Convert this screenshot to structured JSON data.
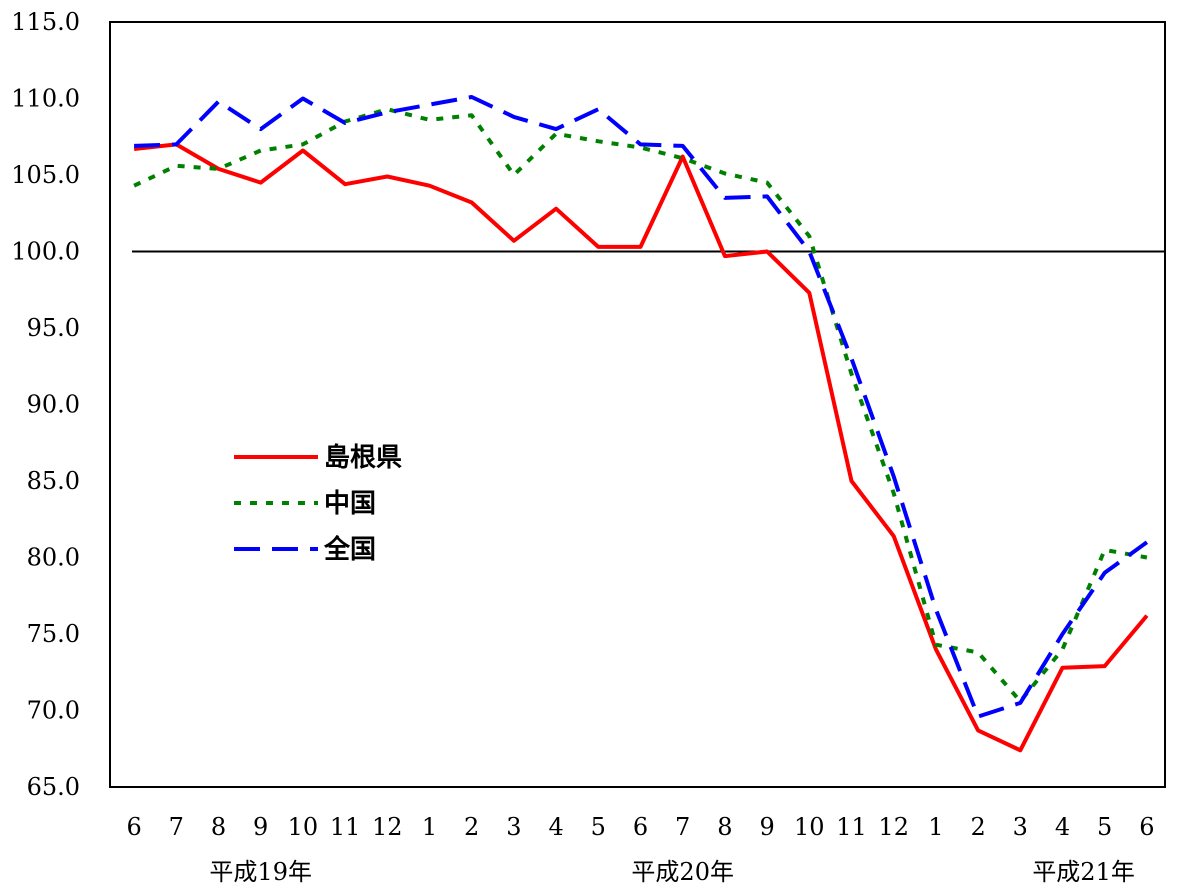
{
  "chart_data": {
    "type": "line",
    "categories": [
      "6",
      "7",
      "8",
      "9",
      "10",
      "11",
      "12",
      "1",
      "2",
      "3",
      "4",
      "5",
      "6",
      "7",
      "8",
      "9",
      "10",
      "11",
      "12",
      "1",
      "2",
      "3",
      "4",
      "5",
      "6"
    ],
    "era_labels": [
      {
        "label": "平成19年",
        "at_index": 3
      },
      {
        "label": "平成20年",
        "at_index": 13
      },
      {
        "label": "平成21年",
        "at_index": 22.5
      }
    ],
    "ylim": [
      65.0,
      115.0
    ],
    "yticks": [
      "65.0",
      "70.0",
      "75.0",
      "80.0",
      "85.0",
      "90.0",
      "95.0",
      "100.0",
      "105.0",
      "110.0",
      "115.0"
    ],
    "reference_line": 100.0,
    "legend_position": "middle-left",
    "series": [
      {
        "name": "島根県",
        "color": "#ff0000",
        "style": "solid",
        "values": [
          106.7,
          107.0,
          105.4,
          104.5,
          106.6,
          104.4,
          104.9,
          104.3,
          103.2,
          100.7,
          102.8,
          100.3,
          100.3,
          106.2,
          99.7,
          100.0,
          97.3,
          85.0,
          81.4,
          74.0,
          68.7,
          67.4,
          72.8,
          72.9,
          76.2
        ]
      },
      {
        "name": "中国",
        "color": "#008000",
        "style": "dotted",
        "values": [
          104.3,
          105.6,
          105.4,
          106.6,
          107.0,
          108.5,
          109.3,
          108.6,
          108.9,
          105.0,
          107.7,
          107.2,
          106.8,
          106.1,
          105.1,
          104.5,
          101.0,
          92.0,
          84.2,
          74.3,
          73.8,
          70.6,
          74.0,
          80.5,
          80.0
        ]
      },
      {
        "name": "全国",
        "color": "#0000ff",
        "style": "dashed",
        "values": [
          106.9,
          107.0,
          109.8,
          108.0,
          110.0,
          108.4,
          109.1,
          109.6,
          110.1,
          108.8,
          108.0,
          109.3,
          107.0,
          106.9,
          103.5,
          103.6,
          100.0,
          93.0,
          85.3,
          76.6,
          69.6,
          70.5,
          75.0,
          79.0,
          81.0
        ]
      }
    ]
  }
}
